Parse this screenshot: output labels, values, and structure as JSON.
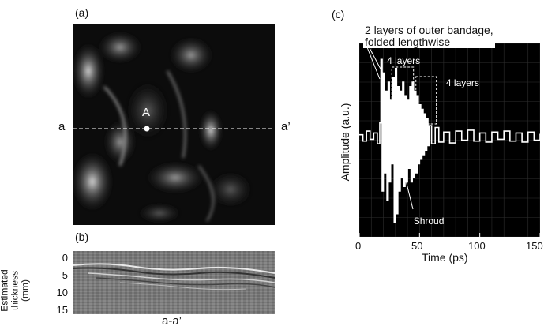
{
  "panel_a": {
    "label": "(a)",
    "left_marker": "a",
    "right_marker": "a’",
    "point_label": "A"
  },
  "panel_b": {
    "label": "(b)",
    "ylabel_line1": "Estimated",
    "ylabel_line2": "thickness",
    "ylabel_line3": "(mm)",
    "yticks": [
      "0",
      "5",
      "10",
      "15"
    ],
    "xlabel": "a-a’"
  },
  "panel_c": {
    "label": "(c)",
    "ylabel": "Amplitude (a.u.)",
    "xlabel": "Time (ps)",
    "annotation_title_line1": "2 layers of outer bandage,",
    "annotation_title_line2": "folded lengthwise",
    "annotation_4layers_a": "4 layers",
    "annotation_4layers_b": "4 layers",
    "annotation_shroud": "Shroud"
  },
  "chart_data": {
    "type": "line",
    "xlabel": "Time (ps)",
    "ylabel": "Amplitude (a.u.)",
    "xlim": [
      0,
      150
    ],
    "xticks": [
      "0",
      "50",
      "100",
      "150"
    ],
    "grid": true,
    "series": [
      {
        "x": [
          0,
          3,
          6,
          9,
          12,
          15,
          17,
          18,
          19,
          20,
          21,
          22,
          23,
          24,
          25,
          26,
          27,
          28,
          29,
          30,
          31,
          32,
          33,
          34,
          35,
          36,
          37,
          38,
          39,
          40,
          41,
          42,
          43,
          44,
          45,
          46,
          47,
          48,
          49,
          50,
          51,
          52,
          53,
          54,
          55,
          56,
          57,
          58,
          60,
          63,
          66,
          70,
          75,
          80,
          85,
          90,
          95,
          100,
          105,
          110,
          115,
          120,
          125,
          130,
          135,
          140,
          145,
          150
        ],
        "y": [
          0.02,
          -0.05,
          0.06,
          -0.03,
          0.04,
          -0.08,
          0.15,
          0.85,
          -0.6,
          0.7,
          -0.4,
          0.5,
          -0.7,
          0.6,
          -0.5,
          0.4,
          -0.3,
          0.65,
          -0.95,
          0.75,
          -0.85,
          0.55,
          -0.6,
          0.5,
          -0.45,
          0.6,
          -0.55,
          0.45,
          -0.5,
          0.4,
          -0.35,
          0.55,
          -0.5,
          0.6,
          -0.45,
          0.5,
          -0.4,
          0.45,
          -0.3,
          0.35,
          -0.25,
          0.3,
          -0.2,
          0.25,
          -0.15,
          0.2,
          -0.1,
          0.12,
          -0.08,
          0.1,
          -0.06,
          0.05,
          -0.07,
          0.06,
          -0.04,
          0.07,
          -0.05,
          0.04,
          -0.06,
          0.05,
          -0.03,
          0.06,
          -0.05,
          0.04,
          -0.06,
          0.05,
          -0.04,
          0.03
        ]
      }
    ]
  }
}
